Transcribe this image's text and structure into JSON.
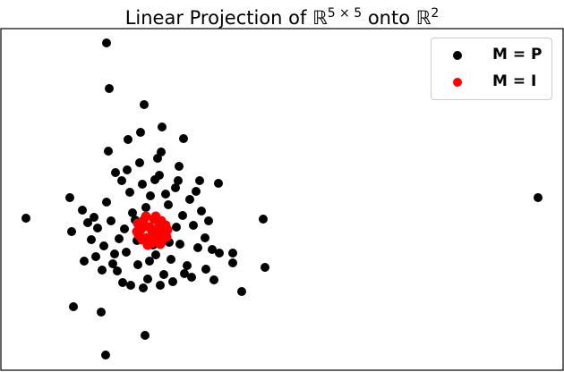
{
  "chart_data": {
    "type": "scatter",
    "title": "Linear Projection of ℝ^{5×5} onto ℝ^2",
    "title_parts": {
      "prefix": "Linear Projection of ",
      "R1": "ℝ",
      "sup1": "5 × 5",
      "mid": " onto ",
      "R2": "ℝ",
      "sup2": "2"
    },
    "xlabel": "",
    "ylabel": "",
    "xlim": [
      -16.9,
      45.9
    ],
    "ylim": [
      -15.6,
      22.6
    ],
    "grid": false,
    "axis_ticks": false,
    "legend_position": "top-right",
    "series": [
      {
        "name": "M = P",
        "color": "#000000",
        "points": [
          [
            -5.1,
            21
          ],
          [
            -4.8,
            15.9
          ],
          [
            -0.9,
            14.1
          ],
          [
            -4.9,
            8.9
          ],
          [
            -2.7,
            10.2
          ],
          [
            -1.3,
            11
          ],
          [
            3.5,
            10.3
          ],
          [
            1.1,
            11.6
          ],
          [
            43.1,
            3.7
          ],
          [
            -14.1,
            1.4
          ],
          [
            12.4,
            1.3
          ],
          [
            -9,
            -0.1
          ],
          [
            12.6,
            -4.1
          ],
          [
            6.9,
            -5.5
          ],
          [
            10,
            -6.8
          ],
          [
            -8.8,
            -8.5
          ],
          [
            -5.7,
            -9.1
          ],
          [
            -0.8,
            -11.7
          ],
          [
            -5.2,
            -13.9
          ],
          [
            9,
            -2.5
          ],
          [
            9,
            -3.6
          ],
          [
            7.5,
            -2.5
          ],
          [
            7.4,
            5.3
          ],
          [
            1,
            8.8
          ],
          [
            -9.2,
            3.7
          ],
          [
            -7.8,
            2.3
          ],
          [
            -6.5,
            1.5
          ],
          [
            -6.8,
            -1
          ],
          [
            -5.1,
            3.2
          ],
          [
            -4.2,
            -2.6
          ],
          [
            -3.9,
            -4.5
          ],
          [
            -3.4,
            5.6
          ],
          [
            -2.5,
            4.3
          ],
          [
            -2.8,
            6.8
          ],
          [
            -1.6,
            -3.8
          ],
          [
            -1.1,
            5.2
          ],
          [
            -0.5,
            -5.4
          ],
          [
            -0.2,
            3.9
          ],
          [
            0.4,
            -2.7
          ],
          [
            0.8,
            6.2
          ],
          [
            1.3,
            -4.9
          ],
          [
            1.8,
            2.9
          ],
          [
            2.1,
            -3.2
          ],
          [
            2.6,
            4.8
          ],
          [
            3.1,
            -1.5
          ],
          [
            3.4,
            1.7
          ],
          [
            3.9,
            -3.9
          ],
          [
            4.2,
            3.5
          ],
          [
            4.6,
            0.6
          ],
          [
            5.1,
            -1.9
          ],
          [
            5.5,
            2.2
          ],
          [
            5.9,
            -0.8
          ],
          [
            6.3,
            1.1
          ],
          [
            6.7,
            -2.1
          ],
          [
            -6.1,
            0.3
          ],
          [
            -5.4,
            -1.7
          ],
          [
            -4.6,
            1.1
          ],
          [
            -3.7,
            -0.9
          ],
          [
            -2.9,
            -2.4
          ],
          [
            -2.2,
            2
          ],
          [
            -1.7,
            -1.1
          ],
          [
            -1,
            -6.4
          ],
          [
            -0.3,
            -3.4
          ],
          [
            0.3,
            5.7
          ],
          [
            0.9,
            -6.1
          ],
          [
            1.5,
            4.1
          ],
          [
            2.3,
            -5.7
          ],
          [
            2.9,
            5.6
          ],
          [
            3.6,
            -4.8
          ],
          [
            4.4,
            -5.2
          ],
          [
            4.9,
            4.4
          ],
          [
            -3.3,
            -5.8
          ],
          [
            -4.4,
            -3.7
          ],
          [
            -5.6,
            -4.4
          ],
          [
            -6.3,
            -2.9
          ],
          [
            -7.2,
            0.9
          ],
          [
            -2.4,
            -6.1
          ],
          [
            1.9,
            -1.3
          ],
          [
            -1.9,
            1.2
          ],
          [
            0.1,
            -1.6
          ],
          [
            -0.7,
            2.6
          ],
          [
            2.7,
            0.4
          ],
          [
            -3.1,
            0.2
          ],
          [
            6,
            -4.3
          ],
          [
            -7.6,
            -3.4
          ],
          [
            5.3,
            5.6
          ],
          [
            -1.4,
            7.6
          ],
          [
            0.6,
            8.1
          ],
          [
            -4.1,
            6.5
          ],
          [
            3,
            7.2
          ]
        ]
      },
      {
        "name": "M = I",
        "color": "#ff0000",
        "points": [
          [
            0,
            0
          ],
          [
            0.8,
            0.6
          ],
          [
            -0.8,
            0.5
          ],
          [
            0.5,
            -0.9
          ],
          [
            -0.6,
            -0.8
          ],
          [
            1.3,
            -0.2
          ],
          [
            -1.3,
            0.1
          ],
          [
            0.2,
            1.3
          ],
          [
            -0.1,
            -1.4
          ],
          [
            1,
            1.1
          ],
          [
            -1,
            1.1
          ],
          [
            1.1,
            -1.1
          ],
          [
            -1.1,
            -1
          ],
          [
            1.5,
            0.6
          ],
          [
            -1.5,
            -0.5
          ],
          [
            0.4,
            1.6
          ],
          [
            -0.5,
            -1.6
          ],
          [
            0.6,
            0.2
          ],
          [
            -0.3,
            0.4
          ],
          [
            0.3,
            -0.3
          ],
          [
            1.6,
            -0.7
          ],
          [
            -1.6,
            0.8
          ],
          [
            -0.7,
            1.6
          ],
          [
            0.9,
            -1.5
          ],
          [
            1.7,
            0.1
          ],
          [
            -1.7,
            -0.1
          ]
        ]
      }
    ]
  }
}
